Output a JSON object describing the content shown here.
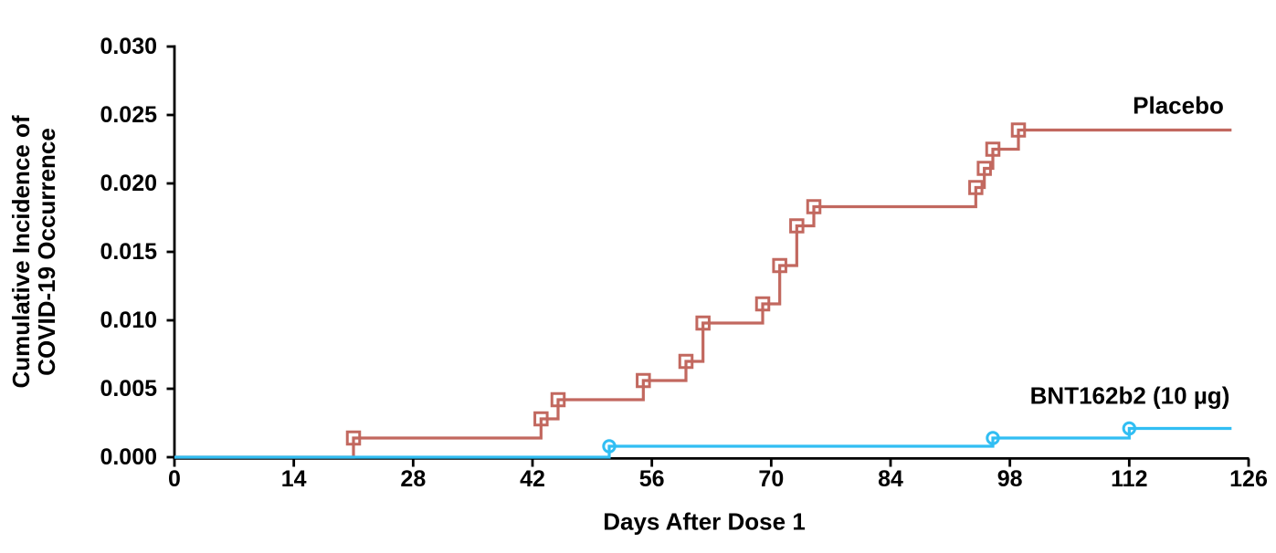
{
  "figure": {
    "background": "#ffffff",
    "text_color": "#000000",
    "axis_color": "#000000"
  },
  "chart_data": {
    "type": "line",
    "subtype": "kaplan-meier-cumulative-incidence-step",
    "title": "",
    "xlabel": "Days After Dose 1",
    "ylabel_line1": "Cumulative Incidence of",
    "ylabel_line2": "COVID-19 Occurrence",
    "xlim": [
      0,
      126
    ],
    "ylim": [
      0.0,
      0.03
    ],
    "xticks": [
      0,
      14,
      28,
      42,
      56,
      70,
      84,
      98,
      112,
      126
    ],
    "xtick_labels": [
      "0",
      "14",
      "28",
      "42",
      "56",
      "70",
      "84",
      "98",
      "112",
      "126"
    ],
    "ytick_values": [
      0.0,
      0.005,
      0.01,
      0.015,
      0.02,
      0.025,
      0.03
    ],
    "ytick_labels": [
      "0.000",
      "0.005",
      "0.010",
      "0.015",
      "0.020",
      "0.025",
      "0.030"
    ],
    "grid": false,
    "legend_position": "labels-at-right-end-of-lines",
    "series": [
      {
        "name": "Placebo",
        "color": "#C2685F",
        "marker": "open-square",
        "line_width": 3.2,
        "start": [
          0,
          0.0
        ],
        "events": [
          [
            21,
            0.0014
          ],
          [
            43,
            0.0028
          ],
          [
            45,
            0.0042
          ],
          [
            55,
            0.0056
          ],
          [
            60,
            0.007
          ],
          [
            62,
            0.0098
          ],
          [
            69,
            0.0112
          ],
          [
            71,
            0.014
          ],
          [
            73,
            0.0169
          ],
          [
            75,
            0.0183
          ],
          [
            94,
            0.0197
          ],
          [
            95,
            0.0211
          ],
          [
            96,
            0.0225
          ],
          [
            99,
            0.0239
          ]
        ],
        "end_day": 124,
        "final_value": 0.0239
      },
      {
        "name": "BNT162b2 (10 µg)",
        "color": "#31BEF3",
        "marker": "open-circle",
        "line_width": 3.2,
        "start": [
          0,
          0.0
        ],
        "events": [
          [
            51,
            0.0008
          ],
          [
            96,
            0.0014
          ],
          [
            112,
            0.0021
          ]
        ],
        "end_day": 124,
        "final_value": 0.0021
      }
    ]
  }
}
